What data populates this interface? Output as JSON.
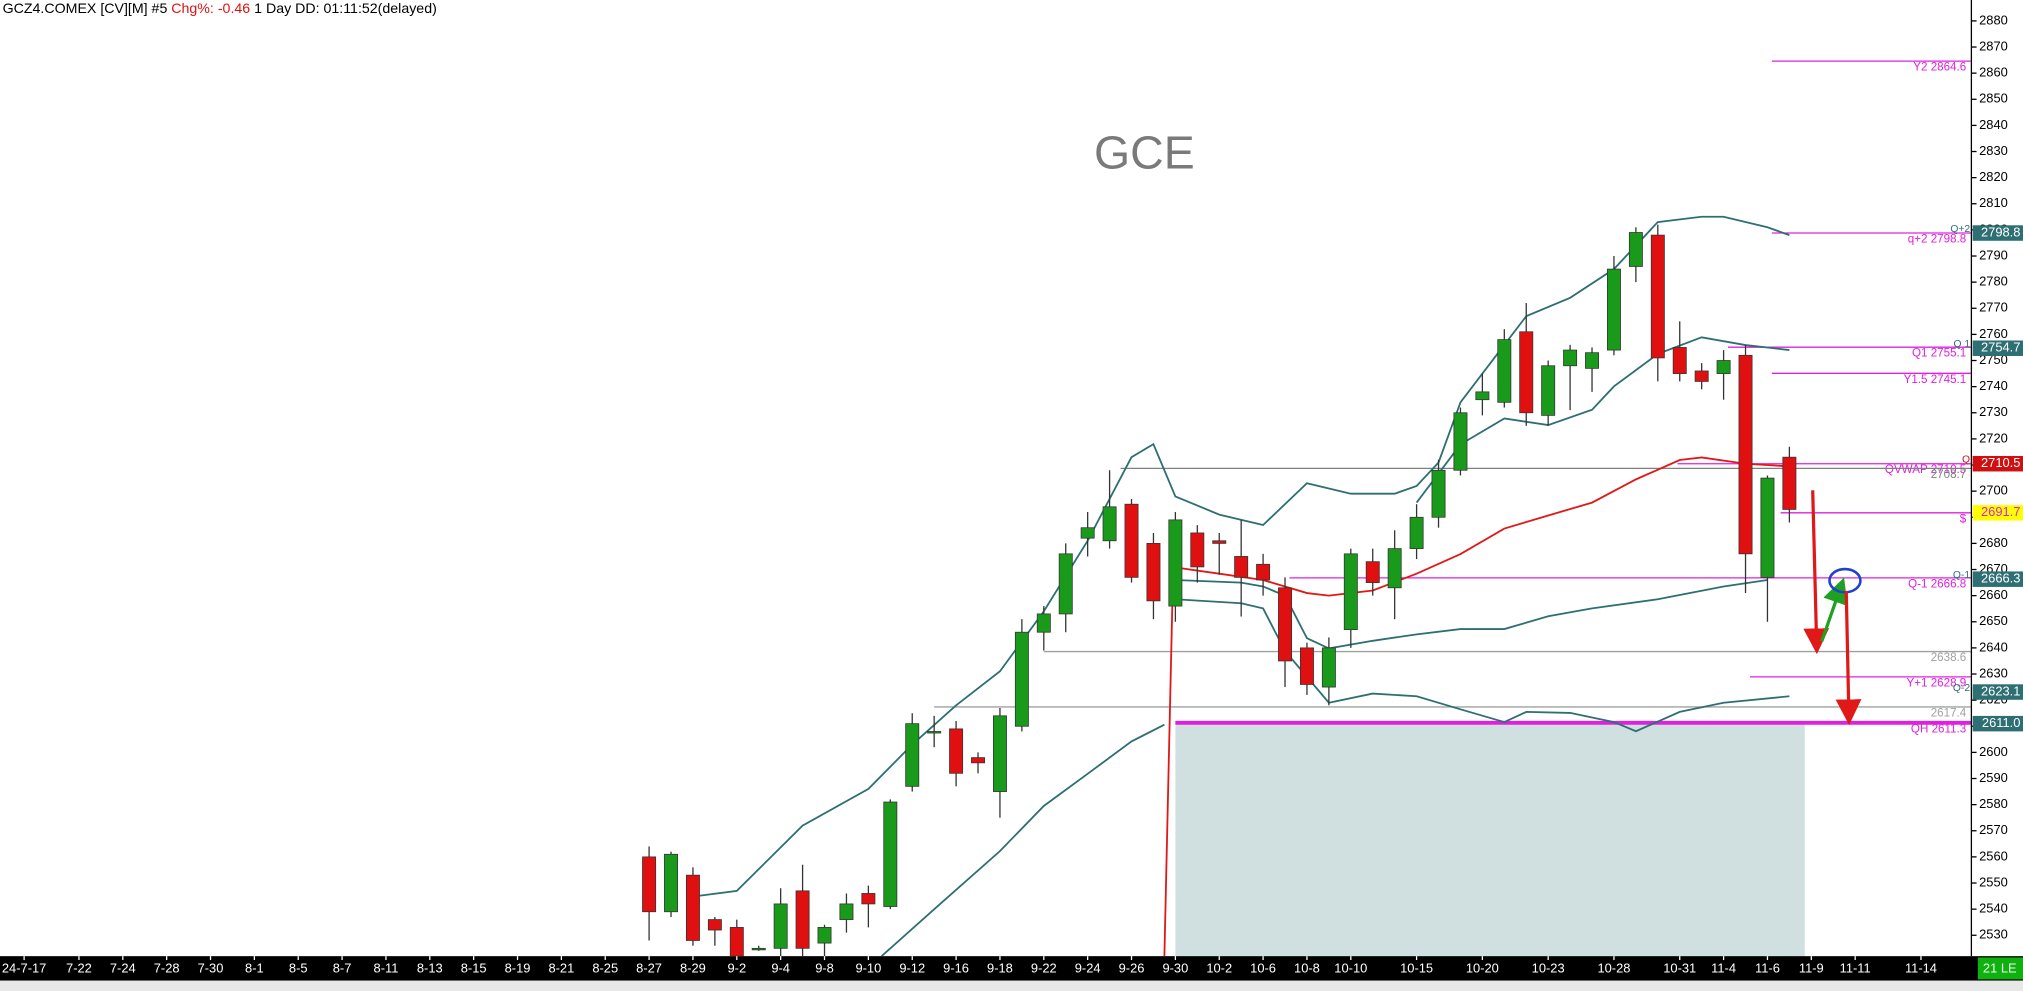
{
  "chart_data": {
    "type": "candlestick",
    "title": "GCE",
    "header": {
      "symbol": "GCZ4.COMEX [CV][M] #5",
      "chg_label": "Chg%:",
      "chg": "-0.46",
      "rest": "1 Day DD: 01:11:52(delayed)"
    },
    "footer": "21 LE",
    "up_color": "#1a9a1a",
    "down_color": "#e01010",
    "xlim": [
      -29.6,
      60.3
    ],
    "ylim": [
      2522,
      2888
    ],
    "xticks": [
      {
        "value": -28.5,
        "label": "24-7-17"
      },
      {
        "value": -26,
        "label": "7-22"
      },
      {
        "value": -24,
        "label": "7-24"
      },
      {
        "value": -22,
        "label": "7-28"
      },
      {
        "value": -20,
        "label": "7-30"
      },
      {
        "value": -18,
        "label": "8-1"
      },
      {
        "value": -16,
        "label": "8-5"
      },
      {
        "value": -14,
        "label": "8-7"
      },
      {
        "value": -12,
        "label": "8-11"
      },
      {
        "value": -10,
        "label": "8-13"
      },
      {
        "value": -8,
        "label": "8-15"
      },
      {
        "value": -6,
        "label": "8-19"
      },
      {
        "value": -4,
        "label": "8-21"
      },
      {
        "value": -2,
        "label": "8-25"
      },
      {
        "value": 0,
        "label": "8-27"
      },
      {
        "value": 2,
        "label": "8-29"
      },
      {
        "value": 4,
        "label": "9-2"
      },
      {
        "value": 6,
        "label": "9-4"
      },
      {
        "value": 8,
        "label": "9-8"
      },
      {
        "value": 10,
        "label": "9-10"
      },
      {
        "value": 12,
        "label": "9-12"
      },
      {
        "value": 14,
        "label": "9-16"
      },
      {
        "value": 16,
        "label": "9-18"
      },
      {
        "value": 18,
        "label": "9-22"
      },
      {
        "value": 20,
        "label": "9-24"
      },
      {
        "value": 22,
        "label": "9-26"
      },
      {
        "value": 24,
        "label": "9-30"
      },
      {
        "value": 26,
        "label": "10-2"
      },
      {
        "value": 28,
        "label": "10-6"
      },
      {
        "value": 30,
        "label": "10-8"
      },
      {
        "value": 32,
        "label": "10-10"
      },
      {
        "value": 35,
        "label": "10-15"
      },
      {
        "value": 38,
        "label": "10-20"
      },
      {
        "value": 41,
        "label": "10-23"
      },
      {
        "value": 44,
        "label": "10-28"
      },
      {
        "value": 47,
        "label": "10-31"
      },
      {
        "value": 49,
        "label": "11-4"
      },
      {
        "value": 51,
        "label": "11-6"
      },
      {
        "value": 53,
        "label": "11-9"
      },
      {
        "value": 55,
        "label": "11-11"
      },
      {
        "value": 58,
        "label": "11-14"
      }
    ],
    "yticks": [
      2530,
      2540,
      2550,
      2560,
      2570,
      2580,
      2590,
      2600,
      2610,
      2620,
      2630,
      2640,
      2650,
      2660,
      2670,
      2680,
      2690,
      2700,
      2710,
      2720,
      2730,
      2740,
      2750,
      2760,
      2770,
      2780,
      2790,
      2800,
      2810,
      2820,
      2830,
      2840,
      2850,
      2860,
      2870,
      2880
    ],
    "x": [
      0,
      1,
      2,
      3,
      4,
      5,
      6,
      7,
      8,
      9,
      10,
      11,
      12,
      13,
      14,
      15,
      16,
      17,
      18,
      19,
      20,
      21,
      22,
      23,
      24,
      25,
      26,
      27,
      28,
      29,
      30,
      31,
      32,
      33,
      34,
      35,
      36,
      37,
      38,
      39,
      40,
      41,
      42,
      43,
      44,
      45,
      46,
      47,
      48,
      49,
      50,
      51,
      52
    ],
    "open": [
      2560,
      2539,
      2553,
      2536,
      2533,
      2525,
      2525,
      2547,
      2527,
      2536,
      2546,
      2541,
      2587,
      2608,
      2609,
      2598,
      2585,
      2610,
      2646,
      2653,
      2682,
      2681,
      2695,
      2680,
      2656,
      2684,
      2681,
      2675,
      2672,
      2663,
      2640,
      2625,
      2647,
      2673,
      2663,
      2678,
      2690,
      2708,
      2735,
      2734,
      2761,
      2729,
      2748,
      2747,
      2754,
      2786,
      2798,
      2755,
      2746,
      2745,
      2752,
      2667,
      2713
    ],
    "high": [
      2564,
      2562,
      2556,
      2537,
      2536,
      2526,
      2548,
      2557,
      2534,
      2546,
      2549,
      2582,
      2615,
      2614,
      2612,
      2600,
      2617,
      2651,
      2656,
      2680,
      2692,
      2708,
      2697,
      2684,
      2692,
      2687,
      2684,
      2689,
      2676,
      2667,
      2642,
      2644,
      2678,
      2678,
      2685,
      2695,
      2712,
      2732,
      2745,
      2762,
      2772,
      2750,
      2756,
      2755,
      2790,
      2801,
      2802,
      2765,
      2749,
      2754,
      2756,
      2706,
      2717
    ],
    "low": [
      2528,
      2537,
      2526,
      2526,
      2520,
      2524,
      2521,
      2521,
      2522,
      2531,
      2533,
      2540,
      2585,
      2602,
      2587,
      2592,
      2575,
      2608,
      2639,
      2646,
      2675,
      2678,
      2665,
      2651,
      2650,
      2665,
      2668,
      2652,
      2660,
      2625,
      2622,
      2618,
      2640,
      2660,
      2651,
      2674,
      2686,
      2706,
      2729,
      2732,
      2725,
      2725,
      2731,
      2738,
      2752,
      2780,
      2742,
      2742,
      2739,
      2735,
      2661,
      2650,
      2688
    ],
    "close": [
      2539,
      2561,
      2528,
      2532,
      2522,
      2525,
      2542,
      2525,
      2533,
      2542,
      2542,
      2581,
      2611,
      2608,
      2592,
      2596,
      2614,
      2646,
      2653,
      2676,
      2686,
      2694,
      2667,
      2658,
      2689,
      2671,
      2680,
      2667,
      2666,
      2635,
      2626,
      2640,
      2676,
      2665,
      2678,
      2690,
      2708,
      2730,
      2738,
      2758,
      2730,
      2748,
      2754,
      2753,
      2785,
      2799,
      2751,
      2745,
      2742,
      2750,
      2676,
      2705,
      2693
    ],
    "lines": [
      {
        "color": "#2e6f73",
        "x": [
          2.2,
          4,
          7,
          10,
          12,
          14,
          16,
          18,
          20,
          22,
          23,
          24,
          26,
          28,
          30,
          32,
          34,
          35,
          36,
          37,
          38,
          40,
          42,
          44,
          46,
          48,
          49,
          51,
          52
        ],
        "values": [
          2545,
          2547,
          2572,
          2586,
          2603,
          2618,
          2631,
          2654,
          2681,
          2713,
          2718,
          2698,
          2691,
          2687,
          2703,
          2699,
          2699,
          2702,
          2711,
          2734,
          2745,
          2767,
          2774,
          2785,
          2803,
          2805,
          2805,
          2801,
          2798
        ]
      },
      {
        "color": "#2e6f73",
        "x": [
          35,
          37,
          39,
          41,
          43,
          44,
          46,
          48,
          50,
          51,
          52
        ],
        "values": [
          2695.6,
          2717.9,
          2727.8,
          2725.3,
          2731.2,
          2740.1,
          2752.5,
          2758.9,
          2755.9,
          2755,
          2754
        ]
      },
      {
        "color": "#2e6f73",
        "x": [
          10.6,
          13,
          16,
          18,
          20,
          22,
          23.5
        ],
        "values": [
          2522,
          2540,
          2562.2,
          2579.5,
          2591.8,
          2604.2,
          2610.6
        ]
      },
      {
        "color": "#2e6f73",
        "x": [
          24,
          27,
          28,
          29,
          30,
          31,
          33,
          35,
          37,
          39,
          41,
          43,
          46,
          49,
          51
        ],
        "values": [
          2666,
          2665,
          2663.5,
          2660,
          2643.7,
          2639.8,
          2642.7,
          2645.2,
          2647.2,
          2647.2,
          2652.1,
          2655.1,
          2658.6,
          2663.5,
          2666
        ]
      },
      {
        "color": "#2e6f73",
        "x": [
          24,
          27,
          28,
          29,
          31,
          33,
          35,
          37,
          39,
          40,
          42,
          44,
          45,
          47,
          49,
          52
        ],
        "values": [
          2658.6,
          2657.1,
          2655.1,
          2638.8,
          2619,
          2622.5,
          2621.5,
          2616.5,
          2611.6,
          2615.5,
          2615.1,
          2611.6,
          2608.1,
          2615.5,
          2619,
          2621.5
        ]
      },
      {
        "color": "#e01818",
        "x": [
          23.5,
          23.9,
          26,
          28,
          30,
          31,
          33,
          35,
          37,
          39,
          41,
          43,
          45,
          47,
          48,
          50,
          52
        ],
        "values": [
          2522,
          2670.9,
          2668.4,
          2666,
          2661,
          2660,
          2662,
          2668.4,
          2675.9,
          2685.7,
          2690.7,
          2695.6,
          2704.5,
          2711.9,
          2712.9,
          2710.5,
          2709.5
        ]
      }
    ],
    "zone": {
      "from": 24,
      "to": 52.7,
      "top": 2611.3,
      "color": "#d0e0e0"
    },
    "levels": [
      {
        "label": "Y2 2864.6",
        "value": 2864.6,
        "from": 51.2,
        "color": "#e020e0"
      },
      {
        "label": "q+2 2798.8",
        "value": 2798.8,
        "from": 51.2,
        "color": "#e020e0"
      },
      {
        "label": "Q1 2755.1",
        "value": 2755.1,
        "from": 49.2,
        "color": "#e020e0"
      },
      {
        "label": "Y1.5 2745.1",
        "value": 2745.1,
        "from": 51.2,
        "color": "#e020e0"
      },
      {
        "label": "QVWAP 2710.5",
        "value": 2710.5,
        "from": 46.9,
        "color": "#e020e0"
      },
      {
        "label": "2708.7",
        "value": 2708.7,
        "from": 21.5,
        "color": "#808080"
      },
      {
        "label": "$",
        "value": 2691.7,
        "from": 51.6,
        "color": "#e020e0"
      },
      {
        "label": "Q-1 2666.8",
        "value": 2666.8,
        "from": 29.2,
        "color": "#e020e0"
      },
      {
        "label": "2638.6",
        "value": 2638.6,
        "from": 18,
        "color": "#a0a0a0"
      },
      {
        "label": "Y+1 2628.9",
        "value": 2628.9,
        "from": 50.2,
        "color": "#e020e0"
      },
      {
        "label": "2617.4",
        "value": 2617.4,
        "from": 13,
        "color": "#a0a0a0"
      },
      {
        "label": "QH 2611.3",
        "value": 2611.3,
        "from": 24,
        "color": "#e020e0",
        "thick": true
      }
    ],
    "tags": [
      {
        "prefix": "Q+2",
        "value": 2798.8,
        "color": "#2e6f73",
        "text_color": "#ffffff"
      },
      {
        "prefix": "Q 1",
        "value": 2754.7,
        "color": "#2e6f73",
        "text_color": "#ffffff"
      },
      {
        "prefix": "Q",
        "value": 2710.5,
        "color": "#d01010",
        "text_color": "#ffffff"
      },
      {
        "value": 2691.7,
        "color": "#ffff00",
        "text_color": "#e020e0"
      },
      {
        "prefix": "Q-1",
        "value": 2666.3,
        "color": "#2e6f73",
        "text_color": "#ffffff"
      },
      {
        "prefix": "Q-2",
        "value": 2623.1,
        "color": "#2e6f73",
        "text_color": "#ffffff"
      },
      {
        "value": {
          "value": 2611,
          "label": "2611.0"
        },
        "color": "#2e6f73",
        "text_color": "#ffffff"
      }
    ]
  }
}
